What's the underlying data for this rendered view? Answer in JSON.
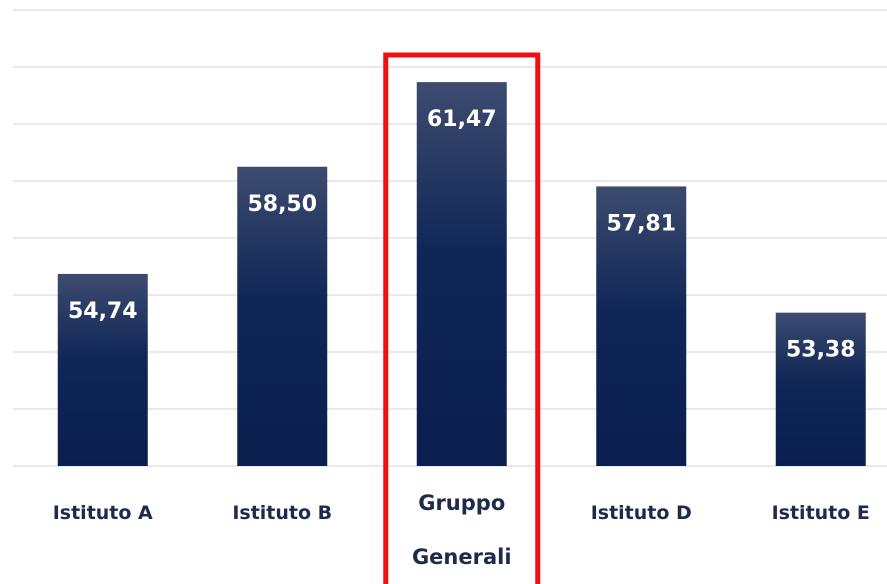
{
  "chart_data": {
    "type": "bar",
    "categories": [
      "Istituto A",
      "Istituto B",
      "Gruppo Generali",
      "Istituto D",
      "Istituto E"
    ],
    "values": [
      54.74,
      58.5,
      61.47,
      57.81,
      53.38
    ],
    "value_labels": [
      "54,74",
      "58,50",
      "61,47",
      "57,81",
      "53,38"
    ],
    "color": "#0f2656",
    "ylim": [
      48,
      64
    ],
    "yticks": [
      48,
      50,
      52,
      54,
      56,
      58,
      60,
      62,
      64
    ],
    "grid": true,
    "highlight": {
      "category": 2,
      "color": "#ee1111"
    }
  }
}
